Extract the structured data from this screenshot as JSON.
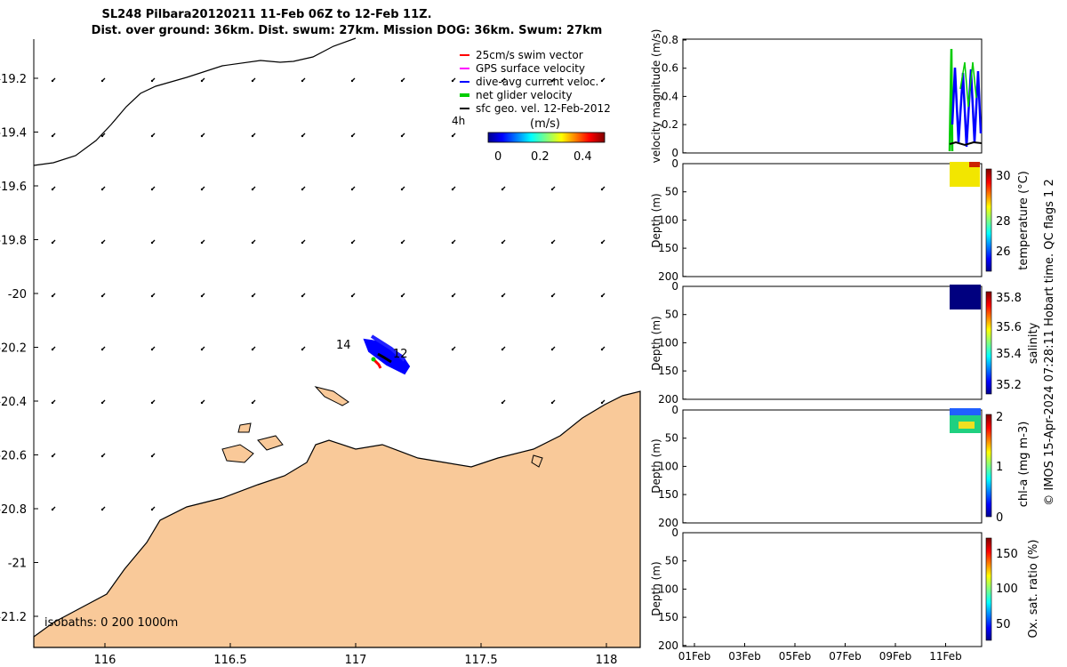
{
  "header": {
    "title_line1": "SL248 Pilbara20120211 11-Feb 06Z to 12-Feb 11Z.",
    "title_line2": "Dist. over ground: 36km. Dist. swum: 27km. Mission DOG: 36km. Swum: 27km"
  },
  "map": {
    "y_ticks": [
      "-19.2",
      "-19.4",
      "-19.6",
      "-19.8",
      "-20",
      "-20.2",
      "-20.4",
      "-20.6",
      "-20.8",
      "-21",
      "-21.2"
    ],
    "x_ticks": [
      "116",
      "116.5",
      "117",
      "117.5",
      "118"
    ],
    "legend": [
      {
        "label": "25cm/s swim vector",
        "color": "#ff0000"
      },
      {
        "label": "GPS surface velocity",
        "color": "#ff00ff"
      },
      {
        "label": "dive-avg current veloc.",
        "color": "#0000ff"
      },
      {
        "label": "net glider velocity",
        "color": "#00cc00"
      },
      {
        "label": "sfc geo. vel. 12-Feb-2012",
        "color": "#000000"
      }
    ],
    "interval_label": "4h",
    "colorbar_title": "(m/s)",
    "colorbar_ticks": [
      "0",
      "0.2",
      "0.4"
    ],
    "track_labels": [
      "14",
      "12"
    ],
    "isobath_label": "isobaths: 0   200  1000m",
    "land_color": "#f9c999"
  },
  "panels": {
    "velocity": {
      "ylabel": "velocity magnitude (m/s)",
      "y_ticks": [
        "0.8",
        "0.6",
        "0.4",
        "0.2",
        "0"
      ]
    },
    "temperature": {
      "ylabel": "Depth (m)",
      "y_ticks": [
        "0",
        "50",
        "100",
        "150",
        "200"
      ],
      "cbar_label": "temperature (°C)",
      "cbar_ticks": [
        "30",
        "28",
        "26"
      ]
    },
    "salinity": {
      "ylabel": "Depth (m)",
      "y_ticks": [
        "0",
        "50",
        "100",
        "150",
        "200"
      ],
      "cbar_label": "salinity",
      "cbar_ticks": [
        "35.8",
        "35.6",
        "35.4",
        "35.2"
      ]
    },
    "chla": {
      "ylabel": "Depth (m)",
      "y_ticks": [
        "0",
        "50",
        "100",
        "150",
        "200"
      ],
      "cbar_label": "chl-a (mg m-3)",
      "cbar_ticks": [
        "2",
        "1",
        "0"
      ]
    },
    "oxygen": {
      "ylabel": "Depth (m)",
      "y_ticks": [
        "0",
        "50",
        "100",
        "150",
        "200"
      ],
      "cbar_label": "Ox. sat. ratio (%)",
      "cbar_ticks": [
        "150",
        "100",
        "50"
      ]
    },
    "x_ticks": [
      "01Feb",
      "03Feb",
      "05Feb",
      "07Feb",
      "09Feb",
      "11Feb"
    ]
  },
  "footer": {
    "credit": "© IMOS 15-Apr-2024 07:28:11 Hobart time. QC flags 1  2"
  }
}
